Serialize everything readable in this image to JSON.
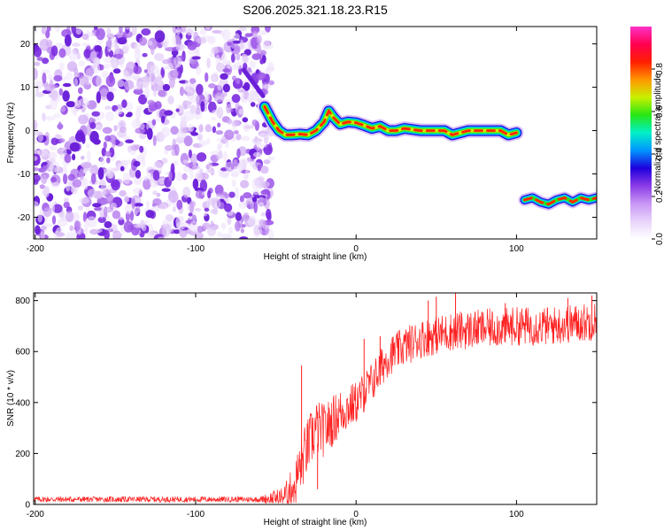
{
  "title": "S206.2025.321.18.23.R15",
  "chart_data": [
    {
      "type": "heatmap",
      "xlabel": "Height of straight line (km)",
      "ylabel": "Frequency (Hz)",
      "xlim": [
        -201,
        150
      ],
      "ylim": [
        -25,
        24
      ],
      "xticks": [
        -200,
        -100,
        0,
        100
      ],
      "yticks": [
        -20,
        -10,
        0,
        10,
        20
      ],
      "noise_region_x": [
        -201,
        -55
      ],
      "ridge": {
        "x": [
          -57,
          -52,
          -48,
          -44,
          -40,
          -35,
          -30,
          -25,
          -20,
          -17,
          -14,
          -10,
          -5,
          0,
          5,
          10,
          15,
          20,
          25,
          30,
          40,
          50,
          55,
          60,
          70,
          80,
          90,
          95,
          100
        ],
        "y": [
          5.5,
          2,
          0,
          -1,
          -1,
          -0.8,
          -1,
          0,
          2,
          4.5,
          3,
          1.5,
          2,
          1.8,
          1.2,
          0.5,
          1,
          0,
          0,
          0.5,
          0,
          0,
          0,
          -1,
          0,
          0,
          0,
          -1,
          -0.5
        ]
      },
      "upper_tail": {
        "x": [
          -70,
          -66,
          -62,
          -58
        ],
        "y": [
          14,
          12,
          10,
          8
        ]
      },
      "ridge_2": {
        "x": [
          105,
          110,
          115,
          120,
          125,
          130,
          135,
          140,
          145,
          150
        ],
        "y": [
          -16,
          -15.5,
          -16.5,
          -17,
          -16,
          -15.5,
          -16.5,
          -15.5,
          -16,
          -15.5
        ]
      },
      "colorbar": {
        "label": "Normalized spectral amplitude",
        "range": [
          0,
          1
        ],
        "ticks": [
          "0.0",
          "0.2",
          "0.4",
          "0.6",
          "0.8"
        ],
        "tick_values": [
          0,
          0.2,
          0.4,
          0.6,
          0.8
        ],
        "colormap": [
          "#ffffff",
          "#e8d4fa",
          "#c896f5",
          "#8c3ce6",
          "#1e00dc",
          "#0096ff",
          "#00f0c8",
          "#28e614",
          "#c8f000",
          "#ff9600",
          "#ff1e00",
          "#ff0050",
          "#ff32c8"
        ]
      }
    },
    {
      "type": "line",
      "xlabel": "Height of straight line (km)",
      "ylabel": "SNR (10 * v/v)",
      "xlim": [
        -201,
        150
      ],
      "ylim": [
        0,
        830
      ],
      "xticks": [
        -200,
        -100,
        0,
        100
      ],
      "yticks": [
        0,
        200,
        400,
        600,
        800
      ],
      "series_color": "#ff2020",
      "trend": {
        "x": [
          -201,
          -60,
          -45,
          -38,
          -35,
          -30,
          -25,
          -20,
          -10,
          0,
          10,
          20,
          30,
          40,
          60,
          80,
          100,
          120,
          150
        ],
        "y": [
          20,
          20,
          30,
          80,
          150,
          230,
          300,
          290,
          360,
          400,
          480,
          580,
          620,
          650,
          680,
          690,
          700,
          700,
          720
        ]
      },
      "noise_amplitude": {
        "x": [
          -201,
          -60,
          -45,
          -35,
          -25,
          0,
          20,
          150
        ],
        "y": [
          8,
          8,
          30,
          80,
          80,
          60,
          55,
          55
        ]
      },
      "spikes": [
        {
          "x": -34,
          "y": 545
        },
        {
          "x": -27,
          "y": 340
        },
        {
          "x": -24,
          "y": 60
        },
        {
          "x": 5,
          "y": 650
        },
        {
          "x": 15,
          "y": 660
        },
        {
          "x": 45,
          "y": 800
        },
        {
          "x": 50,
          "y": 815
        },
        {
          "x": 62,
          "y": 830
        },
        {
          "x": 93,
          "y": 790
        },
        {
          "x": 132,
          "y": 810
        },
        {
          "x": 147,
          "y": 820
        }
      ]
    }
  ]
}
